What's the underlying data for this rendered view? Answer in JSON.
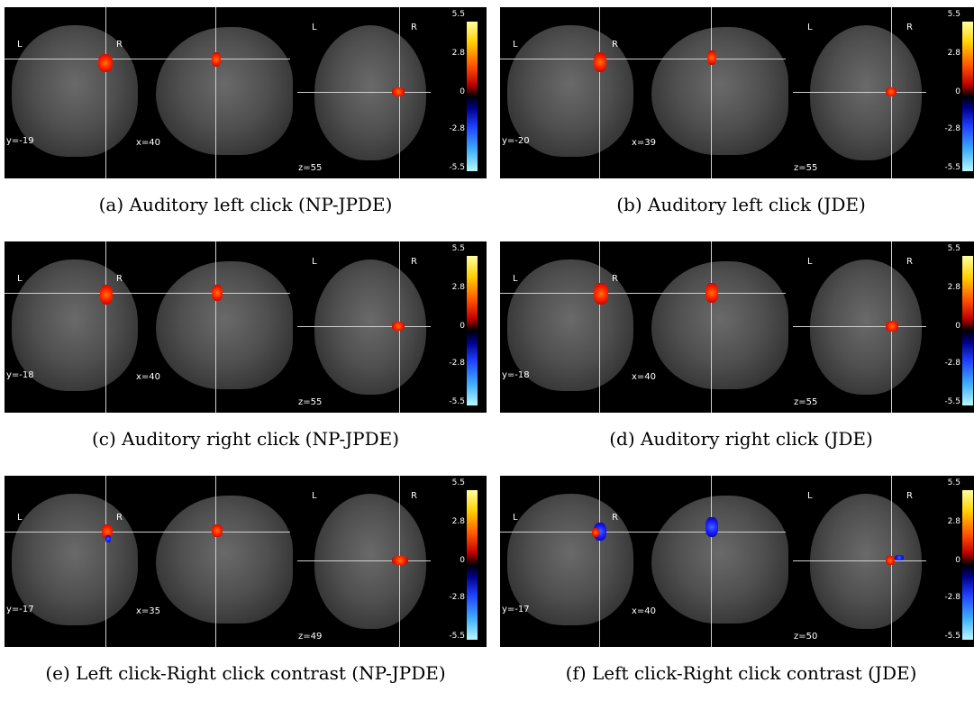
{
  "panels": [
    {
      "caption": "(a) Auditory left click (NP-JPDE)",
      "coords": {
        "y": "y=-19",
        "x": "x=40",
        "z": "z=55"
      },
      "blob_color": "red"
    },
    {
      "caption": "(b) Auditory left click (JDE)",
      "coords": {
        "y": "y=-20",
        "x": "x=39",
        "z": "z=55"
      },
      "blob_color": "red"
    },
    {
      "caption": "(c) Auditory right click (NP-JPDE)",
      "coords": {
        "y": "y=-18",
        "x": "x=40",
        "z": "z=55"
      },
      "blob_color": "red"
    },
    {
      "caption": "(d) Auditory right click (JDE)",
      "coords": {
        "y": "y=-18",
        "x": "x=40",
        "z": "z=55"
      },
      "blob_color": "red"
    },
    {
      "caption": "(e) Left click-Right click contrast (NP-JPDE)",
      "coords": {
        "y": "y=-17",
        "x": "x=35",
        "z": "z=49"
      },
      "blob_color": "red-blue"
    },
    {
      "caption": "(f) Left click-Right click contrast (JDE)",
      "coords": {
        "y": "y=-17",
        "x": "x=40",
        "z": "z=50"
      },
      "blob_color": "red-blue"
    }
  ],
  "orientation": {
    "left": "L",
    "right": "R"
  },
  "colorbar": {
    "ticks": [
      "5.5",
      "2.8",
      "0",
      "-2.8",
      "-5.5"
    ],
    "colors": {
      "max": "#ffffa0",
      "pos": "#ff2200",
      "zero": "#000000",
      "neg": "#1f3fff",
      "min": "#b8f8ff"
    }
  }
}
